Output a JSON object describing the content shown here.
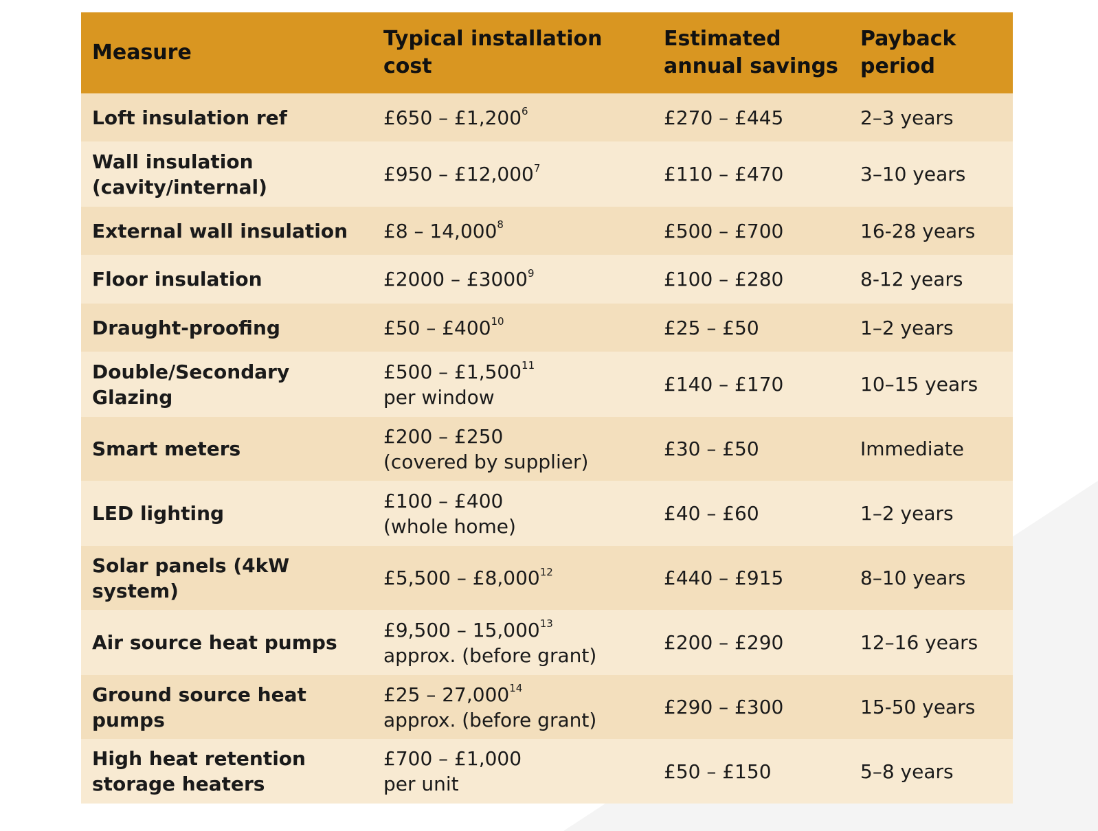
{
  "table": {
    "headers": {
      "measure": "Measure",
      "cost_line1": "Typical installation",
      "cost_line2": "cost",
      "savings_line1": "Estimated",
      "savings_line2": "annual savings",
      "payback_line1": "Payback",
      "payback_line2": "period"
    },
    "rows": [
      {
        "measure": [
          "Loft insulation ref"
        ],
        "cost": [
          "£650 – £1,200"
        ],
        "ref": "6",
        "savings": "£270 – £445",
        "payback": "2–3 years",
        "h": 70
      },
      {
        "measure": [
          "Wall insulation",
          "(cavity/internal)"
        ],
        "cost": [
          "£950 – £12,000"
        ],
        "ref": "7",
        "savings": "£110 – £470",
        "payback": "3–10 years",
        "h": 95
      },
      {
        "measure": [
          "External wall insulation"
        ],
        "cost": [
          "£8 – 14,000"
        ],
        "ref": "8",
        "savings": "£500 – £700",
        "payback": "16-28 years",
        "h": 70
      },
      {
        "measure": [
          "Floor insulation"
        ],
        "cost": [
          "£2000 – £3000"
        ],
        "ref": "9",
        "savings": "£100 – £280",
        "payback": "8-12 years",
        "h": 71
      },
      {
        "measure": [
          "Draught-proofing"
        ],
        "cost": [
          "£50 – £400"
        ],
        "ref": "10",
        "savings": "£25 – £50",
        "payback": "1–2 years",
        "h": 70
      },
      {
        "measure": [
          "Double/Secondary",
          "Glazing"
        ],
        "cost": [
          "£500 – £1,500",
          "per window"
        ],
        "ref": "11",
        "savings": "£140 – £170",
        "payback": "10–15 years",
        "h": 95
      },
      {
        "measure": [
          "Smart meters"
        ],
        "cost": [
          "£200 – £250",
          "(covered by supplier)"
        ],
        "ref": "",
        "savings": "£30 – £50",
        "payback": "Immediate",
        "h": 93
      },
      {
        "measure": [
          "LED lighting"
        ],
        "cost": [
          "£100 – £400",
          "(whole home)"
        ],
        "ref": "",
        "savings": "£40 – £60",
        "payback": "1–2 years",
        "h": 95
      },
      {
        "measure": [
          "Solar panels (4kW system)"
        ],
        "cost": [
          "£5,500 – £8,000"
        ],
        "ref": "12",
        "savings": "£440 – £915",
        "payback": "8–10 years",
        "h": 93
      },
      {
        "measure": [
          "Air source heat pumps"
        ],
        "cost": [
          "£9,500 – 15,000",
          "approx. (before grant)"
        ],
        "ref": "13",
        "savings": "£200 – £290",
        "payback": "12–16 years",
        "h": 95
      },
      {
        "measure": [
          "Ground source heat",
          "pumps"
        ],
        "cost": [
          "£25 – 27,000",
          "approx. (before grant)"
        ],
        "ref": "14",
        "savings": "£290 – £300",
        "payback": "15-50 years",
        "h": 93
      },
      {
        "measure": [
          "High heat retention",
          "storage heaters"
        ],
        "cost": [
          "£700 – £1,000",
          "per unit"
        ],
        "ref": "",
        "savings": "£50 – £150",
        "payback": "5–8 years",
        "h": 94
      }
    ]
  }
}
